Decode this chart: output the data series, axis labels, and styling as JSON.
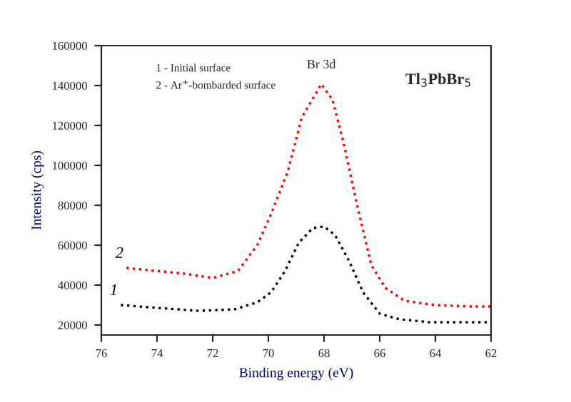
{
  "chart_data": {
    "type": "line",
    "xlabel": "Binding energy (eV)",
    "ylabel": "Intensity (cps)",
    "xlim": [
      76,
      62
    ],
    "xticks": [
      76,
      74,
      72,
      70,
      68,
      66,
      64,
      62
    ],
    "ylim": [
      15000,
      160000
    ],
    "yticks": [
      20000,
      40000,
      60000,
      80000,
      100000,
      120000,
      140000,
      160000
    ],
    "line_style": "dotted",
    "grid": false,
    "legend": false,
    "series": [
      {
        "name": "1",
        "color": "#000000",
        "x": [
          75.3,
          74.0,
          72.5,
          71.2,
          70.4,
          69.9,
          69.4,
          68.9,
          68.4,
          68.0,
          67.6,
          67.1,
          66.6,
          66.0,
          65.3,
          64.2,
          62.0
        ],
        "values": [
          30000,
          28600,
          27100,
          27900,
          31400,
          36400,
          47100,
          61400,
          68600,
          69300,
          65000,
          52100,
          36400,
          25700,
          22900,
          21400,
          21400
        ]
      },
      {
        "name": "2",
        "color": "#ff0000",
        "x": [
          75.1,
          73.0,
          72.0,
          71.1,
          70.4,
          69.9,
          69.3,
          68.8,
          68.1,
          67.7,
          67.3,
          66.8,
          66.3,
          65.8,
          65.1,
          64.0,
          62.7,
          62.0
        ],
        "values": [
          48600,
          45700,
          43600,
          47000,
          60000,
          75700,
          97000,
          124000,
          140700,
          133000,
          111400,
          79300,
          50000,
          38600,
          32100,
          30000,
          29300,
          29300
        ]
      }
    ],
    "annotations": [
      "1 - Initial surface",
      "2 - Ar$^{+}$-bombarded surface",
      {
        "text": "Br 3d",
        "x": 68.1,
        "y": 140700
      },
      "Tl$_{3}$PbBr$_{5}$"
    ]
  }
}
